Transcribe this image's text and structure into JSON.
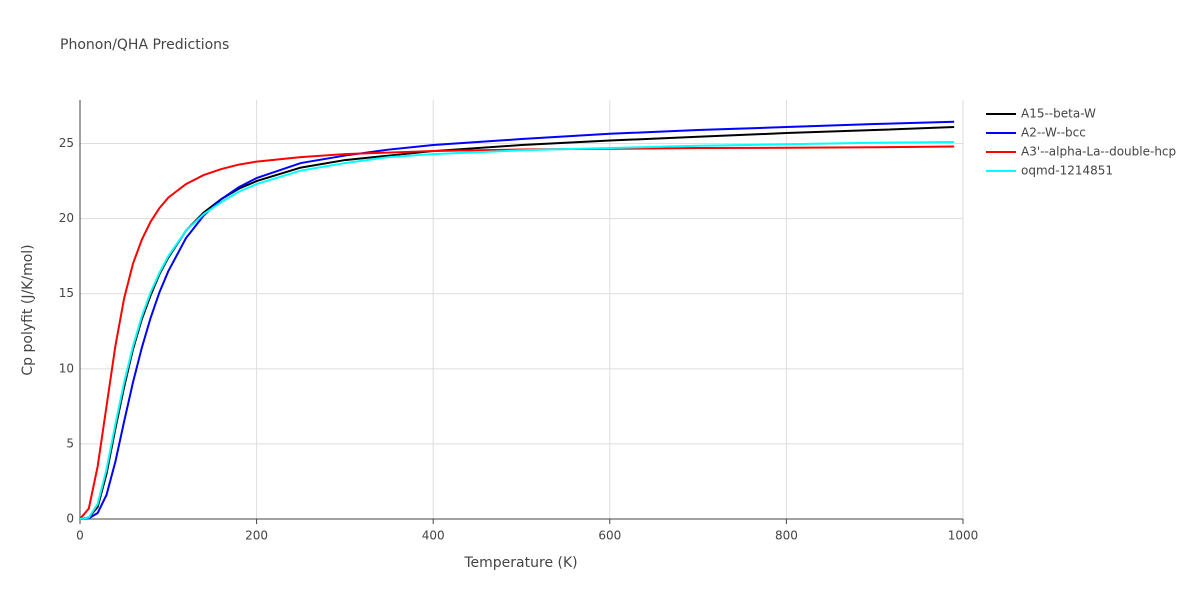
{
  "chart_data": {
    "type": "line",
    "title": "Phonon/QHA Predictions",
    "xlabel": "Temperature (K)",
    "ylabel": "Cp polyfit (J/K/mol)",
    "x": [
      0,
      10,
      20,
      30,
      40,
      50,
      60,
      70,
      80,
      90,
      100,
      120,
      140,
      160,
      180,
      200,
      250,
      300,
      350,
      400,
      500,
      600,
      700,
      800,
      900,
      990
    ],
    "series": [
      {
        "name": "A15--beta-W",
        "color": "#000000",
        "values": [
          0,
          0.1,
          0.8,
          3,
          6,
          8.8,
          11.3,
          13.3,
          14.9,
          16.3,
          17.4,
          19.2,
          20.4,
          21.3,
          22,
          22.5,
          23.4,
          23.9,
          24.2,
          24.5,
          24.9,
          25.2,
          25.45,
          25.7,
          25.9,
          26.1
        ]
      },
      {
        "name": "A2--W--bcc",
        "color": "#0000ff",
        "values": [
          0,
          0.05,
          0.4,
          1.6,
          3.8,
          6.5,
          9.1,
          11.4,
          13.4,
          15.1,
          16.5,
          18.7,
          20.2,
          21.3,
          22.1,
          22.7,
          23.7,
          24.2,
          24.6,
          24.9,
          25.3,
          25.65,
          25.9,
          26.1,
          26.3,
          26.45
        ]
      },
      {
        "name": "A3'--alpha-La--double-hcp",
        "color": "#ff0000",
        "values": [
          0,
          0.7,
          3.5,
          7.5,
          11.5,
          14.7,
          17,
          18.6,
          19.8,
          20.7,
          21.4,
          22.3,
          22.9,
          23.3,
          23.6,
          23.8,
          24.1,
          24.3,
          24.4,
          24.5,
          24.6,
          24.65,
          24.7,
          24.72,
          24.75,
          24.8
        ]
      },
      {
        "name": "oqmd-1214851",
        "color": "#00ffff",
        "values": [
          0,
          0.1,
          1,
          3.3,
          6.3,
          9.1,
          11.5,
          13.5,
          15.1,
          16.4,
          17.5,
          19.2,
          20.3,
          21.1,
          21.8,
          22.3,
          23.2,
          23.7,
          24.1,
          24.3,
          24.55,
          24.7,
          24.85,
          24.95,
          25.05,
          25.1
        ]
      }
    ],
    "xlim": [
      0,
      1000
    ],
    "xticks": [
      0,
      200,
      400,
      600,
      800,
      1000
    ],
    "ylim": [
      0,
      27.9
    ],
    "yticks": [
      0,
      5,
      10,
      15,
      20,
      25
    ],
    "grid": true,
    "legend": "right"
  }
}
